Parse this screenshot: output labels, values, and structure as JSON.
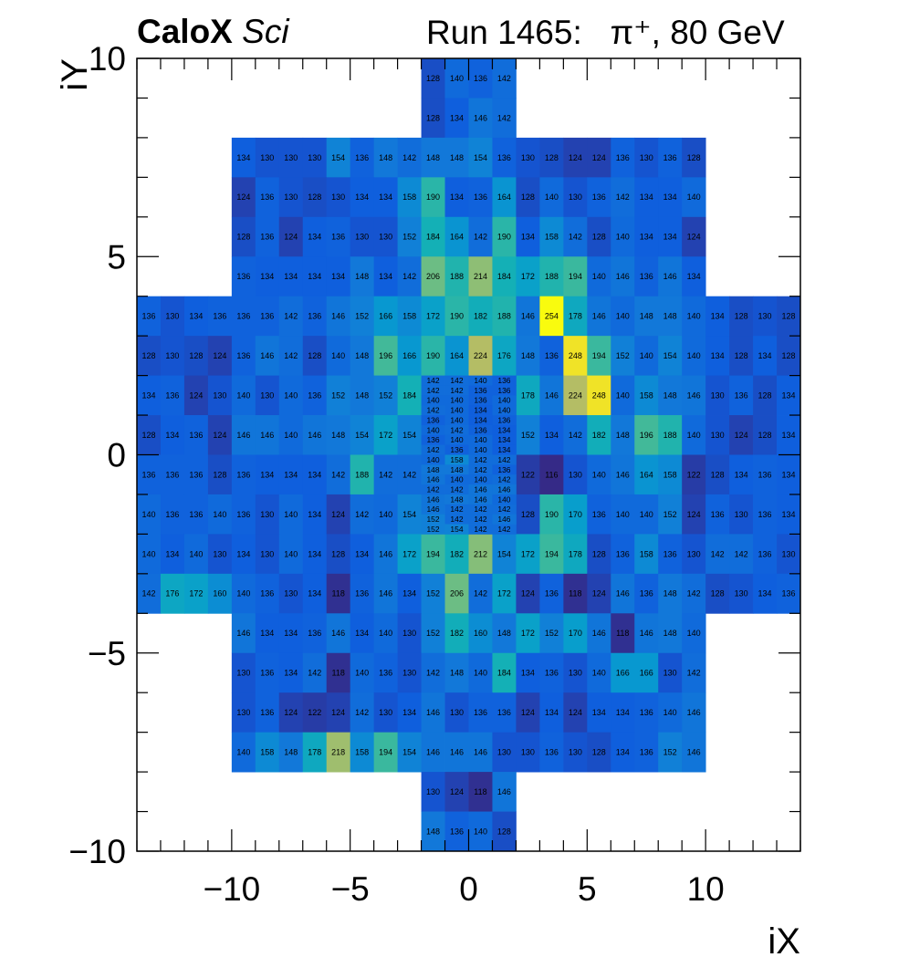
{
  "header": {
    "experiment": "CaloX",
    "detector": "Sci",
    "run_label": "Run 1465:",
    "beam": "π⁺, 80 GeV"
  },
  "chart_data": {
    "type": "heatmap",
    "xlabel": "iX",
    "ylabel": "iY",
    "xlim": [
      -14,
      14
    ],
    "ylim": [
      -10,
      10
    ],
    "x_ticks": [
      "−10",
      "−5",
      "0",
      "5",
      "10"
    ],
    "x_tick_values": [
      -10,
      -5,
      0,
      5,
      10
    ],
    "y_ticks": [
      "−10",
      "−5",
      "0",
      "5",
      "10"
    ],
    "y_tick_values": [
      -10,
      -5,
      0,
      5,
      10
    ],
    "value_range": [
      116,
      254
    ],
    "colormap": "kBird-like: dark blue (low) → cyan → green → yellow (high)",
    "cells": [
      {
        "row_y": 9.5,
        "x_start": -2,
        "values": [
          128,
          140,
          136,
          142
        ]
      },
      {
        "row_y": 8.5,
        "x_start": -2,
        "values": [
          128,
          134,
          146,
          142
        ]
      },
      {
        "row_y": 7.5,
        "x_start": -10,
        "values": [
          134,
          130,
          130,
          130,
          154,
          136,
          148,
          142,
          148,
          148,
          154,
          136,
          130,
          128,
          124,
          124,
          136,
          130,
          136,
          128
        ]
      },
      {
        "row_y": 6.5,
        "x_start": -10,
        "values": [
          124,
          136,
          130,
          128,
          130,
          134,
          134,
          158,
          190,
          134,
          136,
          164,
          128,
          140,
          130,
          136,
          142,
          134,
          134,
          140
        ]
      },
      {
        "row_y": 5.5,
        "x_start": -10,
        "values": [
          128,
          136,
          124,
          134,
          136,
          130,
          130,
          152,
          184,
          164,
          142,
          190,
          134,
          158,
          142,
          128,
          140,
          134,
          134,
          124
        ]
      },
      {
        "row_y": 4.5,
        "x_start": -10,
        "values": [
          136,
          134,
          134,
          134,
          134,
          148,
          134,
          142,
          206,
          188,
          214,
          184,
          172,
          188,
          194,
          140,
          146,
          136,
          146,
          134
        ]
      },
      {
        "row_y": 3.5,
        "x_start": -14,
        "values": [
          136,
          130,
          134,
          136,
          136,
          136,
          142,
          136,
          146,
          152,
          166,
          158,
          172,
          190,
          182,
          188,
          146,
          254,
          178,
          146,
          140,
          148,
          148,
          140,
          134,
          128,
          130,
          128
        ]
      },
      {
        "row_y": 2.5,
        "x_start": -14,
        "values": [
          128,
          130,
          128,
          124,
          136,
          146,
          142,
          128,
          140,
          148,
          196,
          166,
          190,
          164,
          224,
          176,
          148,
          136,
          248,
          194,
          152,
          140,
          154,
          140,
          134,
          128,
          134,
          128
        ]
      },
      {
        "row_y": 1.5,
        "x_start": -14,
        "values": [
          134,
          136,
          124,
          130,
          140,
          130,
          140,
          136,
          152,
          148,
          152,
          184,
          null,
          null,
          null,
          null,
          178,
          146,
          224,
          248,
          140,
          158,
          148,
          146,
          130,
          136,
          128,
          134
        ]
      },
      {
        "row_y": 0.5,
        "x_start": -14,
        "values": [
          128,
          134,
          136,
          124,
          146,
          146,
          140,
          146,
          148,
          154,
          172,
          154,
          null,
          null,
          null,
          null,
          152,
          134,
          142,
          182,
          148,
          196,
          188,
          140,
          130,
          124,
          128,
          134
        ]
      },
      {
        "row_y": -0.5,
        "x_start": -14,
        "values": [
          136,
          136,
          136,
          128,
          136,
          134,
          134,
          134,
          142,
          188,
          142,
          142,
          null,
          null,
          null,
          null,
          122,
          116,
          130,
          140,
          146,
          164,
          158,
          122,
          128,
          134,
          136,
          134
        ]
      },
      {
        "row_y": -1.5,
        "x_start": -14,
        "values": [
          140,
          136,
          136,
          140,
          136,
          130,
          140,
          134,
          124,
          142,
          140,
          154,
          null,
          null,
          null,
          null,
          128,
          190,
          170,
          136,
          140,
          140,
          152,
          124,
          136,
          130,
          136,
          134
        ]
      },
      {
        "row_y": -2.5,
        "x_start": -14,
        "values": [
          140,
          134,
          140,
          130,
          134,
          130,
          140,
          134,
          128,
          134,
          146,
          172,
          194,
          182,
          212,
          154,
          172,
          194,
          178,
          128,
          136,
          158,
          136,
          130,
          142,
          142,
          136,
          130
        ]
      },
      {
        "row_y": -3.5,
        "x_start": -14,
        "values": [
          142,
          176,
          172,
          160,
          140,
          136,
          130,
          134,
          118,
          136,
          146,
          134,
          152,
          206,
          142,
          172,
          124,
          136,
          118,
          124,
          146,
          136,
          148,
          142,
          128,
          130,
          134,
          136
        ]
      },
      {
        "row_y": -4.5,
        "x_start": -10,
        "values": [
          146,
          134,
          134,
          136,
          146,
          134,
          140,
          130,
          152,
          182,
          160,
          148,
          172,
          152,
          170,
          146,
          118,
          146,
          148,
          140
        ]
      },
      {
        "row_y": -5.5,
        "x_start": -10,
        "values": [
          130,
          136,
          134,
          142,
          118,
          140,
          136,
          130,
          142,
          148,
          140,
          184,
          134,
          136,
          130,
          140,
          166,
          166,
          130,
          142
        ]
      },
      {
        "row_y": -6.5,
        "x_start": -10,
        "values": [
          130,
          136,
          124,
          122,
          124,
          142,
          130,
          134,
          146,
          130,
          136,
          136,
          124,
          134,
          124,
          134,
          134,
          136,
          140,
          146
        ]
      },
      {
        "row_y": -7.5,
        "x_start": -10,
        "values": [
          140,
          158,
          148,
          178,
          218,
          158,
          194,
          154,
          146,
          146,
          146,
          130,
          130,
          136,
          130,
          128,
          134,
          136,
          152,
          146
        ]
      },
      {
        "row_y": -8.5,
        "x_start": -2,
        "values": [
          130,
          124,
          118,
          146
        ]
      },
      {
        "row_y": -9.5,
        "x_start": -2,
        "values": [
          148,
          136,
          140,
          128
        ]
      }
    ],
    "fine_grid": {
      "x_range": [
        -2,
        2
      ],
      "y_range": [
        -2,
        2
      ],
      "rows_top_to_bottom": [
        [
          142,
          142,
          140,
          136
        ],
        [
          142,
          142,
          136,
          136
        ],
        [
          140,
          140,
          136,
          140
        ],
        [
          142,
          140,
          134,
          140
        ],
        [
          136,
          140,
          134,
          136
        ],
        [
          140,
          142,
          136,
          134
        ],
        [
          136,
          140,
          140,
          134
        ],
        [
          142,
          136,
          140,
          134
        ],
        [
          140,
          158,
          142,
          142
        ],
        [
          148,
          148,
          142,
          136
        ],
        [
          146,
          140,
          140,
          142
        ],
        [
          142,
          142,
          146,
          146
        ],
        [
          146,
          148,
          146,
          140
        ],
        [
          146,
          142,
          142,
          142
        ],
        [
          152,
          142,
          142,
          146
        ],
        [
          152,
          154,
          142,
          142
        ]
      ]
    }
  }
}
